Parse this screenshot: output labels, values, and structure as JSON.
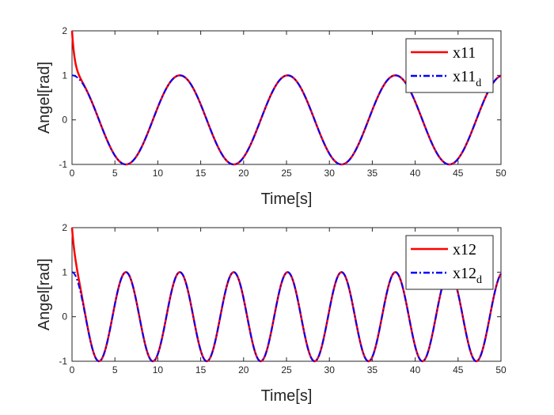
{
  "chart_data": [
    {
      "type": "line",
      "xlabel": "Time[s]",
      "ylabel": "Angel[rad]",
      "xlim": [
        0,
        50
      ],
      "ylim": [
        -1,
        2
      ],
      "xticks": [
        "0",
        "5",
        "10",
        "15",
        "20",
        "25",
        "30",
        "35",
        "40",
        "45",
        "50"
      ],
      "yticks": [
        "-1",
        "0",
        "1",
        "2"
      ],
      "grid": false,
      "legend_position": "top-right",
      "series": [
        {
          "name": "x11",
          "legend_main": "x11",
          "legend_sub": "",
          "color": "#ff0000",
          "style": "solid",
          "function": "cos",
          "omega": 0.5,
          "initial_value": 2,
          "transient_decay": 3.0
        },
        {
          "name": "x11d",
          "legend_main": "x11",
          "legend_sub": "d",
          "color": "#0000ff",
          "style": "dashdot",
          "function": "cos",
          "omega": 0.5
        }
      ]
    },
    {
      "type": "line",
      "xlabel": "Time[s]",
      "ylabel": "Angel[rad]",
      "xlim": [
        0,
        50
      ],
      "ylim": [
        -1,
        2
      ],
      "xticks": [
        "0",
        "5",
        "10",
        "15",
        "20",
        "25",
        "30",
        "35",
        "40",
        "45",
        "50"
      ],
      "yticks": [
        "-1",
        "0",
        "1",
        "2"
      ],
      "grid": false,
      "legend_position": "top-right",
      "series": [
        {
          "name": "x12",
          "legend_main": "x12",
          "legend_sub": "",
          "color": "#ff0000",
          "style": "solid",
          "function": "cos",
          "omega": 1.0,
          "initial_value": 2,
          "transient_decay": 2.5
        },
        {
          "name": "x12d",
          "legend_main": "x12",
          "legend_sub": "d",
          "color": "#0000ff",
          "style": "dashdot",
          "function": "cos",
          "omega": 1.0
        }
      ]
    }
  ]
}
